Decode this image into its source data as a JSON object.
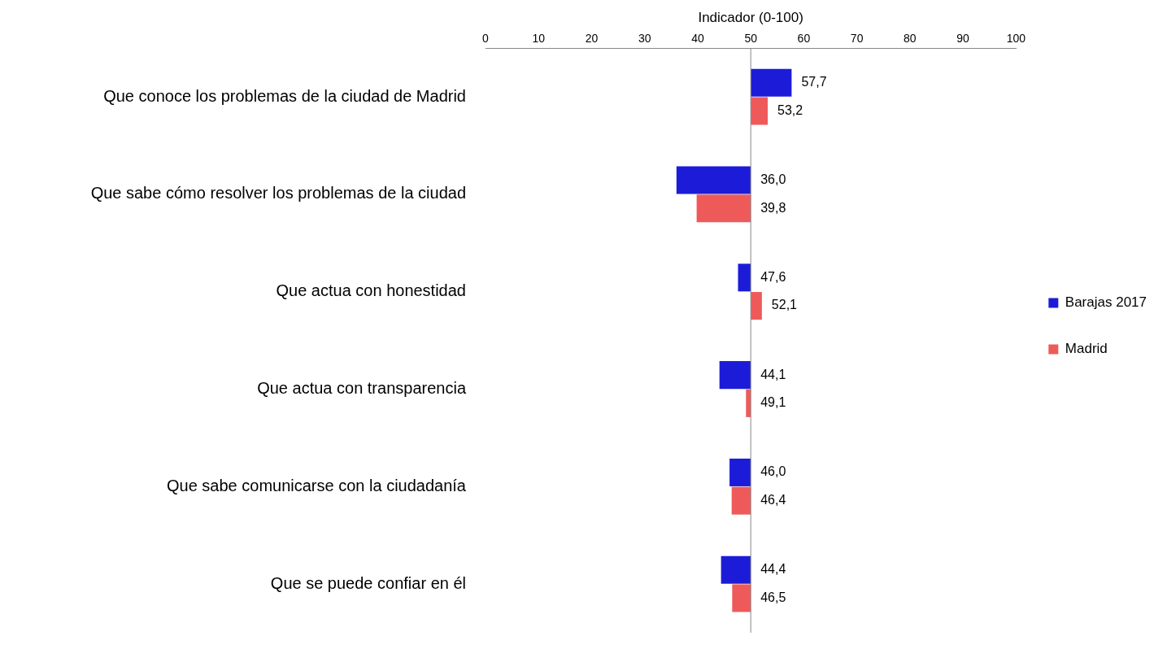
{
  "chart_data": {
    "type": "bar",
    "orientation": "horizontal",
    "xlabel": "Indicador (0-100)",
    "categories": [
      "Que conoce los problemas de la ciudad de Madrid",
      "Que sabe cómo resolver los problemas de la ciudad",
      "Que actua con honestidad",
      "Que actua con transparencia",
      "Que sabe comunicarse con la ciudadanía",
      "Que se puede confiar en él"
    ],
    "series": [
      {
        "name": "Barajas 2017",
        "color": "#1c1cd8",
        "base": [
          50,
          50,
          50,
          50,
          50,
          50
        ],
        "values": [
          7.7,
          -14.0,
          -2.4,
          -5.9,
          -4.0,
          -5.6
        ],
        "value_labels": [
          "57,7",
          "36,0",
          "47,6",
          "44,1",
          "46,0",
          "44,4"
        ]
      },
      {
        "name": "Madrid",
        "color": "#ee5a5a",
        "base": [
          50,
          50,
          50,
          50,
          50,
          50
        ],
        "values": [
          3.2,
          -10.2,
          2.1,
          -0.9,
          -3.6,
          -3.5
        ],
        "value_labels": [
          "53,2",
          "39,8",
          "52,1",
          "49,1",
          "46,4",
          "46,5"
        ]
      }
    ],
    "xlim": [
      0,
      100
    ],
    "xticks": [
      0,
      10,
      20,
      30,
      40,
      50,
      60,
      70,
      80,
      90,
      100
    ],
    "ref_lines": [
      {
        "axis": "x",
        "value": 50,
        "color": "#888888"
      }
    ],
    "grid": false,
    "legend": "right"
  }
}
